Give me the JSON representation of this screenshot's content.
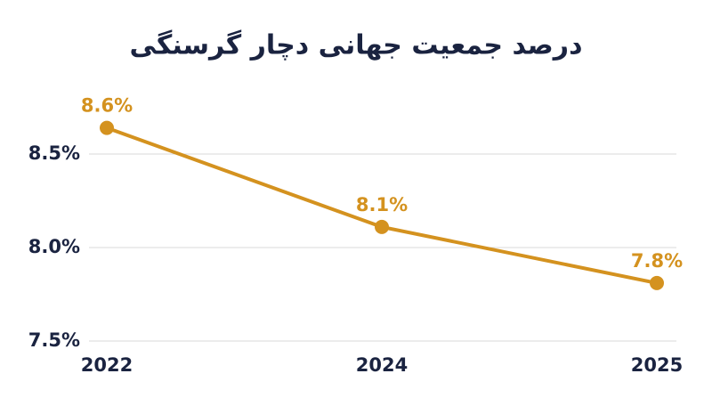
{
  "chart_data": {
    "type": "line",
    "title": "درصد جمعیت جهانی دچار گرسنگی",
    "categories": [
      "2022",
      "2024",
      "2025"
    ],
    "series": [
      {
        "color": "#d4921f",
        "values": [
          8.64,
          8.11,
          7.81
        ],
        "value_labels": [
          "8.6%",
          "8.1%",
          "7.8%"
        ]
      }
    ],
    "ylim": [
      7.5,
      8.75
    ],
    "yticks": [
      {
        "value": 7.5,
        "label": "7.5%"
      },
      {
        "value": 8.0,
        "label": "8.0%"
      },
      {
        "value": 8.5,
        "label": "8.5%"
      }
    ],
    "grid": true
  }
}
